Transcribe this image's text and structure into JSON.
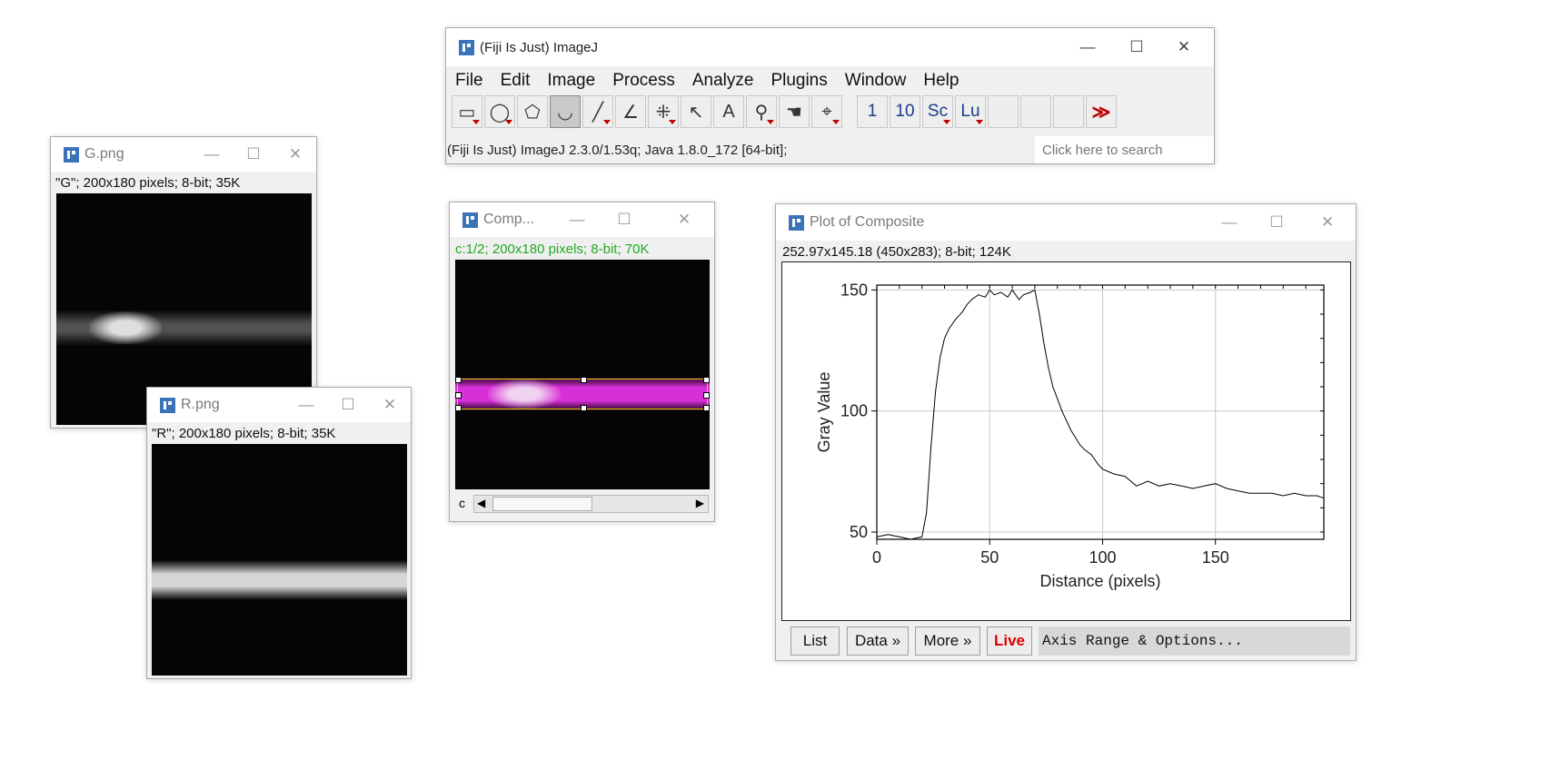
{
  "main_window": {
    "title": "(Fiji Is Just) ImageJ",
    "menus": [
      "File",
      "Edit",
      "Image",
      "Process",
      "Analyze",
      "Plugins",
      "Window",
      "Help"
    ],
    "tools": [
      {
        "name": "rectangle-tool-icon",
        "glyph": "▭",
        "selected": false,
        "dropdown": true
      },
      {
        "name": "oval-tool-icon",
        "glyph": "◯",
        "selected": false,
        "dropdown": true
      },
      {
        "name": "polygon-tool-icon",
        "glyph": "⬠",
        "selected": false,
        "dropdown": false
      },
      {
        "name": "freehand-tool-icon",
        "glyph": "◡",
        "selected": true,
        "dropdown": false
      },
      {
        "name": "line-tool-icon",
        "glyph": "╱",
        "selected": false,
        "dropdown": true
      },
      {
        "name": "angle-tool-icon",
        "glyph": "∠",
        "selected": false,
        "dropdown": false
      },
      {
        "name": "multipoint-tool-icon",
        "glyph": "⁜",
        "selected": false,
        "dropdown": true
      },
      {
        "name": "wand-tool-icon",
        "glyph": "↖",
        "selected": false,
        "dropdown": false
      },
      {
        "name": "text-tool-icon",
        "glyph": "A",
        "selected": false,
        "dropdown": false
      },
      {
        "name": "magnifier-tool-icon",
        "glyph": "⚲",
        "selected": false,
        "dropdown": true
      },
      {
        "name": "hand-tool-icon",
        "glyph": "☚",
        "selected": false,
        "dropdown": false
      },
      {
        "name": "dropper-tool-icon",
        "glyph": "⌖",
        "selected": false,
        "dropdown": true
      }
    ],
    "text_tools": [
      {
        "label": "1",
        "dropdown": false
      },
      {
        "label": "10",
        "dropdown": false
      },
      {
        "label": "Sc",
        "dropdown": true
      },
      {
        "label": "Lu",
        "dropdown": true
      }
    ],
    "more_tools": "≫",
    "status": "(Fiji Is Just) ImageJ 2.3.0/1.53q; Java 1.8.0_172 [64-bit];",
    "search_placeholder": "Click here to search"
  },
  "window_controls": {
    "minimize": "—",
    "maximize": "☐",
    "close": "✕"
  },
  "g_window": {
    "title": "G.png",
    "info": "\"G\"; 200x180 pixels; 8-bit; 35K"
  },
  "r_window": {
    "title": "R.png",
    "info": "\"R\"; 200x180 pixels; 8-bit; 35K"
  },
  "composite_window": {
    "title": "Comp...",
    "info": "c:1/2; 200x180 pixels; 8-bit; 70K",
    "slider_label": "c",
    "info_color": "#22aa22"
  },
  "plot_window": {
    "title": "Plot of Composite",
    "info": "252.97x145.18  (450x283); 8-bit; 124K",
    "buttons": {
      "list": "List",
      "data": "Data »",
      "more": "More »",
      "live": "Live"
    },
    "axis_options": "Axis Range & Options...",
    "live_color": "#dd0000"
  },
  "chart_data": {
    "type": "line",
    "xlabel": "Distance (pixels)",
    "ylabel": "Gray Value",
    "xlim": [
      0,
      198
    ],
    "ylim": [
      47,
      152
    ],
    "x_ticks": [
      0,
      50,
      100,
      150
    ],
    "y_ticks": [
      50,
      100,
      150
    ],
    "grid": true,
    "series": [
      {
        "x": [
          0,
          5,
          10,
          15,
          20,
          22,
          24,
          26,
          28,
          30,
          32,
          35,
          38,
          40,
          42,
          45,
          48,
          50,
          52,
          55,
          58,
          60,
          63,
          65,
          68,
          70,
          72,
          74,
          76,
          78,
          80,
          82,
          84,
          86,
          88,
          90,
          92,
          95,
          98,
          100,
          105,
          110,
          115,
          120,
          125,
          130,
          135,
          140,
          145,
          150,
          155,
          160,
          165,
          170,
          175,
          180,
          185,
          190,
          195,
          198
        ],
        "y": [
          48,
          49,
          48,
          47,
          48,
          58,
          85,
          108,
          122,
          130,
          134,
          138,
          141,
          144,
          146,
          148,
          147,
          150,
          148,
          149,
          147,
          150,
          146,
          148,
          149,
          150,
          140,
          128,
          118,
          110,
          105,
          100,
          96,
          92,
          89,
          86,
          84,
          82,
          78,
          76,
          74,
          73,
          69,
          71,
          69,
          70,
          69,
          68,
          69,
          70,
          68,
          67,
          66,
          66,
          66,
          65,
          66,
          65,
          65,
          64
        ]
      }
    ]
  }
}
